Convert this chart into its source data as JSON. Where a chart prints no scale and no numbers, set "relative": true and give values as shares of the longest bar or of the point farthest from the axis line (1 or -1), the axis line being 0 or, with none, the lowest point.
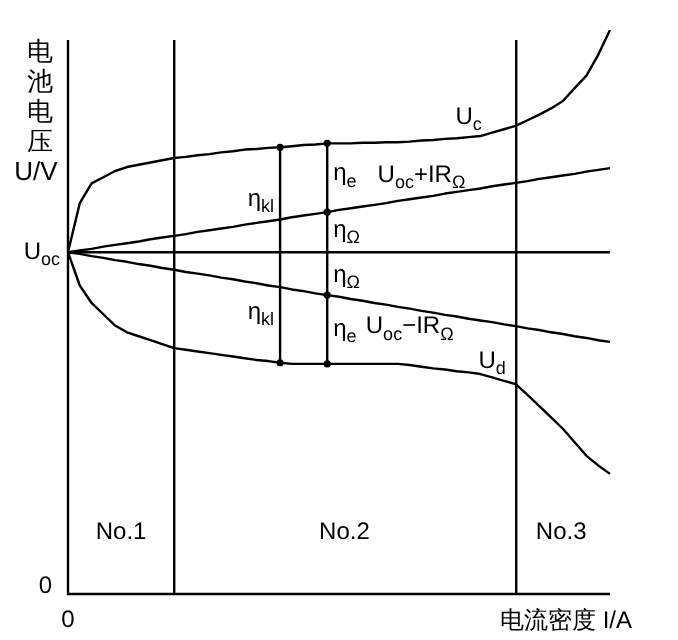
{
  "chart_data": {
    "type": "line",
    "relative": true,
    "xlabel": "电流密度 I/A",
    "ylabel": "电池电压 U/V",
    "legend": false,
    "marker": "none",
    "line_style": "solid",
    "categories": [
      null,
      null,
      null,
      null,
      null,
      null,
      null,
      null,
      null,
      null,
      null,
      null,
      null,
      null,
      null,
      null,
      null,
      null,
      null,
      null,
      null,
      null,
      null,
      null,
      null,
      null,
      null,
      null,
      null,
      null,
      null,
      null,
      null,
      null,
      null,
      null,
      null,
      null,
      null,
      null,
      null,
      null,
      null,
      null,
      null,
      null,
      null
    ],
    "series": [
      {
        "name": "U$_{c}$",
        "color": "#000000",
        "values": [
          0.606,
          0.693,
          0.728,
          0.739,
          0.75,
          0.757,
          0.761,
          0.765,
          0.769,
          0.773,
          0.775,
          0.778,
          0.78,
          0.783,
          0.785,
          0.788,
          0.789,
          0.791,
          0.792,
          0.794,
          0.796,
          0.797,
          0.799,
          0.799,
          0.799,
          0.8,
          0.8,
          0.801,
          0.801,
          0.802,
          0.804,
          0.805,
          0.807,
          0.808,
          0.81,
          0.812,
          0.818,
          0.824,
          0.83,
          0.84,
          0.85,
          0.861,
          0.874,
          0.897,
          0.919,
          0.956,
          1
        ]
      },
      {
        "name": "U$_{oc}$+IR$_{Ω}$",
        "color": "#000000",
        "values": [
          0.606,
          0.609,
          0.612,
          0.616,
          0.619,
          0.622,
          0.625,
          0.629,
          0.632,
          0.635,
          0.638,
          0.642,
          0.645,
          0.648,
          0.651,
          0.655,
          0.658,
          0.661,
          0.664,
          0.668,
          0.671,
          0.674,
          0.677,
          0.681,
          0.684,
          0.687,
          0.69,
          0.693,
          0.697,
          0.7,
          0.703,
          0.706,
          0.71,
          0.713,
          0.716,
          0.719,
          0.723,
          0.726,
          0.729,
          0.732,
          0.736,
          0.739,
          0.742,
          0.745,
          0.749,
          0.752,
          0.755
        ]
      },
      {
        "name": "U$_{oc}$−IR$_{Ω}$",
        "color": "#000000",
        "values": [
          0.606,
          0.603,
          0.599,
          0.596,
          0.592,
          0.589,
          0.585,
          0.582,
          0.578,
          0.575,
          0.571,
          0.568,
          0.565,
          0.561,
          0.558,
          0.554,
          0.551,
          0.547,
          0.544,
          0.54,
          0.537,
          0.533,
          0.53,
          0.527,
          0.523,
          0.52,
          0.516,
          0.513,
          0.509,
          0.506,
          0.502,
          0.499,
          0.495,
          0.492,
          0.488,
          0.485,
          0.482,
          0.478,
          0.475,
          0.471,
          0.468,
          0.464,
          0.461,
          0.457,
          0.454,
          0.45,
          0.447
        ]
      },
      {
        "name": "U$_{d}$",
        "color": "#000000",
        "values": [
          0.606,
          0.547,
          0.516,
          0.496,
          0.476,
          0.464,
          0.457,
          0.45,
          0.443,
          0.436,
          0.433,
          0.43,
          0.427,
          0.424,
          0.421,
          0.418,
          0.415,
          0.413,
          0.41,
          0.408,
          0.408,
          0.408,
          0.408,
          0.408,
          0.408,
          0.408,
          0.408,
          0.408,
          0.408,
          0.406,
          0.403,
          0.4,
          0.398,
          0.395,
          0.393,
          0.39,
          0.384,
          0.378,
          0.372,
          0.353,
          0.333,
          0.313,
          0.293,
          0.269,
          0.245,
          0.228,
          0.213
        ]
      }
    ],
    "ref_lines": [
      {
        "axis": "y",
        "value": 0.606,
        "label": "U$_{oc}$"
      }
    ],
    "annotations": [
      "η$_{kl}$",
      "η$_{e}$",
      "η$_{Ω}$",
      "η$_{Ω}$",
      "η$_{e}$",
      "η$_{kl}$",
      "No.1",
      "No.2",
      "No.3",
      "0",
      "0"
    ]
  }
}
